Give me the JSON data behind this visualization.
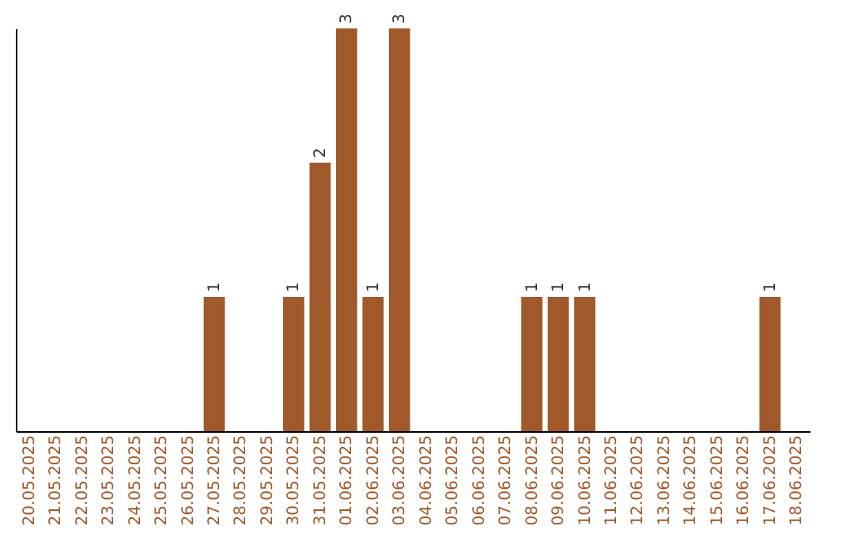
{
  "chart_data": {
    "type": "bar",
    "categories": [
      "20.05.2025",
      "21.05.2025",
      "22.05.2025",
      "23.05.2025",
      "24.05.2025",
      "25.05.2025",
      "26.05.2025",
      "27.05.2025",
      "28.05.2025",
      "29.05.2025",
      "30.05.2025",
      "31.05.2025",
      "01.06.2025",
      "02.06.2025",
      "03.06.2025",
      "04.06.2025",
      "05.06.2025",
      "06.06.2025",
      "07.06.2025",
      "08.06.2025",
      "09.06.2025",
      "10.06.2025",
      "11.06.2025",
      "12.06.2025",
      "13.06.2025",
      "14.06.2025",
      "15.06.2025",
      "16.06.2025",
      "17.06.2025",
      "18.06.2025"
    ],
    "values": [
      0,
      0,
      0,
      0,
      0,
      0,
      0,
      1,
      0,
      0,
      1,
      2,
      3,
      1,
      3,
      0,
      0,
      0,
      0,
      1,
      1,
      1,
      0,
      0,
      0,
      0,
      0,
      0,
      1,
      0
    ],
    "color": "#a0592b",
    "ylim": [
      0,
      3
    ],
    "value_labels": [
      null,
      null,
      null,
      null,
      null,
      null,
      null,
      "1",
      null,
      null,
      "1",
      "2",
      "3",
      "1",
      "3",
      null,
      null,
      null,
      null,
      "1",
      "1",
      "1",
      null,
      null,
      null,
      null,
      null,
      null,
      "1",
      null
    ],
    "tick_labels": "x",
    "grid": false
  }
}
